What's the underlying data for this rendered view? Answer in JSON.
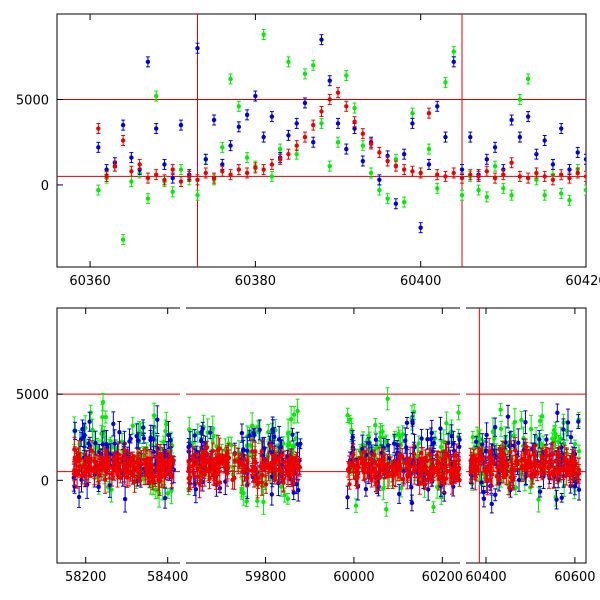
{
  "colors": {
    "frame": "#000000",
    "reference": "#e00000",
    "green": "#00ee00",
    "blue": "#0000dd",
    "red": "#ee0000"
  },
  "chart_data": [
    {
      "type": "scatter",
      "title": "",
      "xlabel": "",
      "ylabel": "",
      "xlim": [
        60356,
        60420
      ],
      "ylim": [
        -4800,
        10000
      ],
      "x_ticks": [
        60360,
        60380,
        60400,
        60420
      ],
      "y_ticks": [
        0,
        5000
      ],
      "grid": false,
      "reference_lines": {
        "horizontal": [
          5000,
          500
        ],
        "vertical": [
          60373,
          60405
        ]
      },
      "series": [
        {
          "color": "green",
          "points": [
            [
              60361,
              -300
            ],
            [
              60362,
              400
            ],
            [
              60363,
              1100
            ],
            [
              60364,
              -3200
            ],
            [
              60365,
              200
            ],
            [
              60366,
              700
            ],
            [
              60367,
              -800
            ],
            [
              60368,
              5200
            ],
            [
              60369,
              200
            ],
            [
              60370,
              -400
            ],
            [
              60371,
              900
            ],
            [
              60372,
              300
            ],
            [
              60373,
              -600
            ],
            [
              60374,
              1500
            ],
            [
              60375,
              300
            ],
            [
              60376,
              2200
            ],
            [
              60377,
              6200
            ],
            [
              60378,
              4600
            ],
            [
              60379,
              1600
            ],
            [
              60380,
              1100
            ],
            [
              60381,
              8800
            ],
            [
              60382,
              500
            ],
            [
              60383,
              2100
            ],
            [
              60384,
              7200
            ],
            [
              60385,
              1800
            ],
            [
              60386,
              6500
            ],
            [
              60387,
              7000
            ],
            [
              60388,
              3600
            ],
            [
              60389,
              1100
            ],
            [
              60390,
              2500
            ],
            [
              60391,
              6400
            ],
            [
              60392,
              4500
            ],
            [
              60393,
              2300
            ],
            [
              60394,
              700
            ],
            [
              60395,
              -300
            ],
            [
              60396,
              -800
            ],
            [
              60397,
              1500
            ],
            [
              60398,
              -1000
            ],
            [
              60399,
              4200
            ],
            [
              60400,
              700
            ],
            [
              60401,
              2100
            ],
            [
              60402,
              -200
            ],
            [
              60403,
              6000
            ],
            [
              60404,
              7800
            ],
            [
              60405,
              -600
            ],
            [
              60406,
              500
            ],
            [
              60407,
              -300
            ],
            [
              60408,
              -700
            ],
            [
              60409,
              1100
            ],
            [
              60410,
              -200
            ],
            [
              60411,
              -600
            ],
            [
              60412,
              5000
            ],
            [
              60413,
              6200
            ],
            [
              60414,
              300
            ],
            [
              60415,
              -600
            ],
            [
              60416,
              600
            ],
            [
              60417,
              -500
            ],
            [
              60418,
              -900
            ],
            [
              60419,
              900
            ],
            [
              60420,
              -300
            ]
          ]
        },
        {
          "color": "blue",
          "points": [
            [
              60361,
              2200
            ],
            [
              60362,
              900
            ],
            [
              60363,
              1300
            ],
            [
              60364,
              3500
            ],
            [
              60365,
              1600
            ],
            [
              60366,
              900
            ],
            [
              60367,
              7200
            ],
            [
              60368,
              3300
            ],
            [
              60369,
              1200
            ],
            [
              60370,
              400
            ],
            [
              60371,
              3500
            ],
            [
              60372,
              600
            ],
            [
              60373,
              8000
            ],
            [
              60374,
              1500
            ],
            [
              60375,
              3800
            ],
            [
              60376,
              1200
            ],
            [
              60377,
              2300
            ],
            [
              60378,
              3400
            ],
            [
              60379,
              4100
            ],
            [
              60380,
              5200
            ],
            [
              60381,
              2800
            ],
            [
              60382,
              4000
            ],
            [
              60383,
              1600
            ],
            [
              60384,
              2900
            ],
            [
              60385,
              3600
            ],
            [
              60386,
              4800
            ],
            [
              60387,
              2500
            ],
            [
              60388,
              8500
            ],
            [
              60389,
              6100
            ],
            [
              60390,
              3600
            ],
            [
              60391,
              2100
            ],
            [
              60392,
              3300
            ],
            [
              60393,
              1400
            ],
            [
              60394,
              2500
            ],
            [
              60395,
              300
            ],
            [
              60396,
              1700
            ],
            [
              60397,
              -1100
            ],
            [
              60398,
              1800
            ],
            [
              60399,
              3600
            ],
            [
              60400,
              -2500
            ],
            [
              60401,
              1200
            ],
            [
              60402,
              4600
            ],
            [
              60403,
              2800
            ],
            [
              60404,
              7200
            ],
            [
              60405,
              900
            ],
            [
              60406,
              2800
            ],
            [
              60407,
              600
            ],
            [
              60408,
              1500
            ],
            [
              60409,
              2200
            ],
            [
              60410,
              900
            ],
            [
              60411,
              3800
            ],
            [
              60412,
              2800
            ],
            [
              60413,
              4000
            ],
            [
              60414,
              1800
            ],
            [
              60415,
              2600
            ],
            [
              60416,
              1200
            ],
            [
              60417,
              3300
            ],
            [
              60418,
              900
            ],
            [
              60419,
              1900
            ],
            [
              60420,
              1500
            ]
          ]
        },
        {
          "color": "red",
          "points": [
            [
              60361,
              3300
            ],
            [
              60362,
              500
            ],
            [
              60363,
              1100
            ],
            [
              60364,
              2600
            ],
            [
              60365,
              800
            ],
            [
              60366,
              1200
            ],
            [
              60367,
              400
            ],
            [
              60368,
              600
            ],
            [
              60369,
              300
            ],
            [
              60370,
              900
            ],
            [
              60371,
              200
            ],
            [
              60372,
              500
            ],
            [
              60373,
              300
            ],
            [
              60374,
              700
            ],
            [
              60375,
              400
            ],
            [
              60376,
              800
            ],
            [
              60377,
              600
            ],
            [
              60378,
              900
            ],
            [
              60379,
              700
            ],
            [
              60380,
              1000
            ],
            [
              60381,
              900
            ],
            [
              60382,
              1200
            ],
            [
              60383,
              1500
            ],
            [
              60384,
              1800
            ],
            [
              60385,
              2300
            ],
            [
              60386,
              2800
            ],
            [
              60387,
              3500
            ],
            [
              60388,
              4300
            ],
            [
              60389,
              5000
            ],
            [
              60390,
              5400
            ],
            [
              60391,
              4600
            ],
            [
              60392,
              3700
            ],
            [
              60393,
              3000
            ],
            [
              60394,
              2400
            ],
            [
              60395,
              1900
            ],
            [
              60396,
              1400
            ],
            [
              60397,
              1100
            ],
            [
              60398,
              900
            ],
            [
              60399,
              800
            ],
            [
              60400,
              700
            ],
            [
              60401,
              4200
            ],
            [
              60402,
              600
            ],
            [
              60403,
              500
            ],
            [
              60404,
              700
            ],
            [
              60405,
              400
            ],
            [
              60406,
              600
            ],
            [
              60407,
              500
            ],
            [
              60408,
              800
            ],
            [
              60409,
              400
            ],
            [
              60410,
              600
            ],
            [
              60411,
              1300
            ],
            [
              60412,
              500
            ],
            [
              60413,
              400
            ],
            [
              60414,
              700
            ],
            [
              60415,
              500
            ],
            [
              60416,
              300
            ],
            [
              60417,
              600
            ],
            [
              60418,
              400
            ],
            [
              60419,
              700
            ],
            [
              60420,
              500
            ]
          ]
        }
      ]
    },
    {
      "type": "scatter",
      "title": "",
      "xlabel": "",
      "ylabel": "",
      "xlim": [
        58130,
        60625
      ],
      "ylim": [
        -4800,
        10000
      ],
      "x_ticks": [
        58200,
        58400,
        59800,
        60000,
        60200,
        60400,
        60600
      ],
      "y_ticks": [
        0,
        5000
      ],
      "grid": false,
      "broken_axis_gaps": [
        [
          58420,
          59620
        ],
        [
          60240,
          60360
        ]
      ],
      "reference_lines": {
        "horizontal": [
          5000,
          500
        ],
        "vertical": [
          60385
        ]
      },
      "seasons": [
        [
          58170,
          58415
        ],
        [
          59625,
          59880
        ],
        [
          59985,
          60245
        ],
        [
          60365,
          60610
        ]
      ],
      "series": [
        {
          "color": "green",
          "points_per_season": 90,
          "center": 1500,
          "spread": 4200
        },
        {
          "color": "blue",
          "points_per_season": 90,
          "center": 1200,
          "spread": 3800
        },
        {
          "color": "red",
          "points_per_season": 160,
          "center": 800,
          "spread": 1500
        }
      ]
    }
  ]
}
